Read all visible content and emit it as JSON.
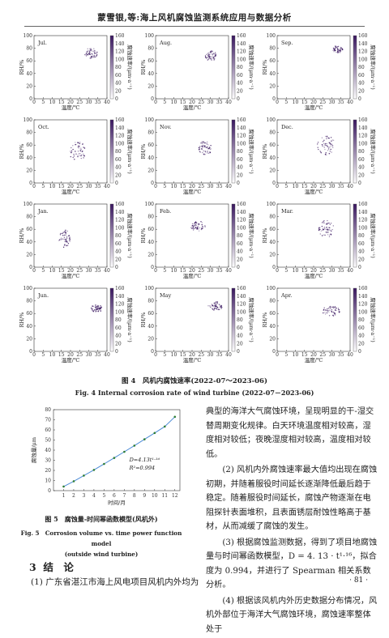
{
  "header": {
    "title": "蒙雪银,等:海上风机腐蚀监测系统应用与数据分析"
  },
  "fig4": {
    "caption_cn": "图 4　风机内腐蚀速率(2022-07～2023-06)",
    "caption_en": "Fig. 4  Internal corrosion rate of wind turbine (2022-07－2023-06)",
    "panels": [
      {
        "month": "Jul."
      },
      {
        "month": "Aug."
      },
      {
        "month": "Sep."
      },
      {
        "month": "Oct."
      },
      {
        "month": "Nov."
      },
      {
        "month": "Dec."
      },
      {
        "month": "Jan."
      },
      {
        "month": "Feb."
      },
      {
        "month": "Mar."
      },
      {
        "month": "Jun."
      },
      {
        "month": "May"
      },
      {
        "month": "Apr."
      }
    ],
    "xlabel": "温度/℃",
    "ylabel": "RH/%",
    "cbar_label": "腐蚀速率/(μm·a⁻¹)",
    "xticks": [
      "0",
      "5",
      "10",
      "15",
      "20",
      "25",
      "30",
      "35",
      "40"
    ],
    "yticks": [
      "0",
      "20",
      "40",
      "60",
      "80",
      "100"
    ],
    "cbar_ticks": [
      "0",
      "20",
      "40",
      "60",
      "80",
      "100",
      "120",
      "140",
      "160"
    ],
    "colors": {
      "low": "#ffffff",
      "high": "#3a1760"
    }
  },
  "fig5": {
    "caption_cn": "图 5　腐蚀量-时间幂函数模型(风机外)",
    "caption_en_1": "Fig. 5　Corrosion volume vs. time power function model",
    "caption_en_2": "(outside wind turbine)",
    "xlabel": "时间/月",
    "ylabel": "腐蚀量/μm",
    "equation": "D=4.13t¹·¹⁶",
    "r2": "R²=0.994",
    "xticks": [
      "1",
      "2",
      "3",
      "4",
      "5",
      "6",
      "7",
      "8",
      "9",
      "10",
      "11",
      "12"
    ],
    "yticks": [
      "0",
      "10",
      "20",
      "30",
      "40",
      "50",
      "60",
      "70",
      "80"
    ]
  },
  "chart_data": {
    "type": "line",
    "x": [
      1,
      2,
      3,
      4,
      5,
      6,
      7,
      8,
      9,
      10,
      11,
      12
    ],
    "series": [
      {
        "values": [
          4.1,
          9.3,
          14.9,
          20.5,
          26.4,
          32.3,
          38.4,
          44.5,
          50.7,
          57.0,
          63.4,
          73.0
        ]
      }
    ],
    "xlabel": "时间/月",
    "ylabel": "腐蚀量/μm",
    "xlim": [
      0,
      12.5
    ],
    "ylim": [
      0,
      80
    ],
    "grid": false
  },
  "section": {
    "number": "3",
    "title": "结　论"
  },
  "left_para": "(1) 广东省湛江市海上风电项目风机内外均为",
  "right_paras": [
    "典型的海洋大气腐蚀环境，呈现明显的干-湿交替周期变化规律。白天环境温度相对较高，湿度相对较低；夜晚湿度相对较高，温度相对较低。",
    "(2) 风机内外腐蚀速率最大值均出现在腐蚀初期，并随着服役时间延长逐渐降低最后趋于稳定。随着服役时间延长，腐蚀产物逐渐在电阻探针表面堆积，且表面锈层耐蚀性略高于基材，从而减缓了腐蚀的发生。",
    "(3) 根据腐蚀监测数据，得到了项目地腐蚀量与时间幂函数模型，D = 4. 13 · t¹·¹⁶，拟合度为 0.994，并进行了 Spearman 相关系数分析。",
    "(4) 根据该风机内外历史数据分布情况，风机外部位于海洋大气腐蚀环境，腐蚀速率整体处于"
  ],
  "page_number": "· 81 ·"
}
